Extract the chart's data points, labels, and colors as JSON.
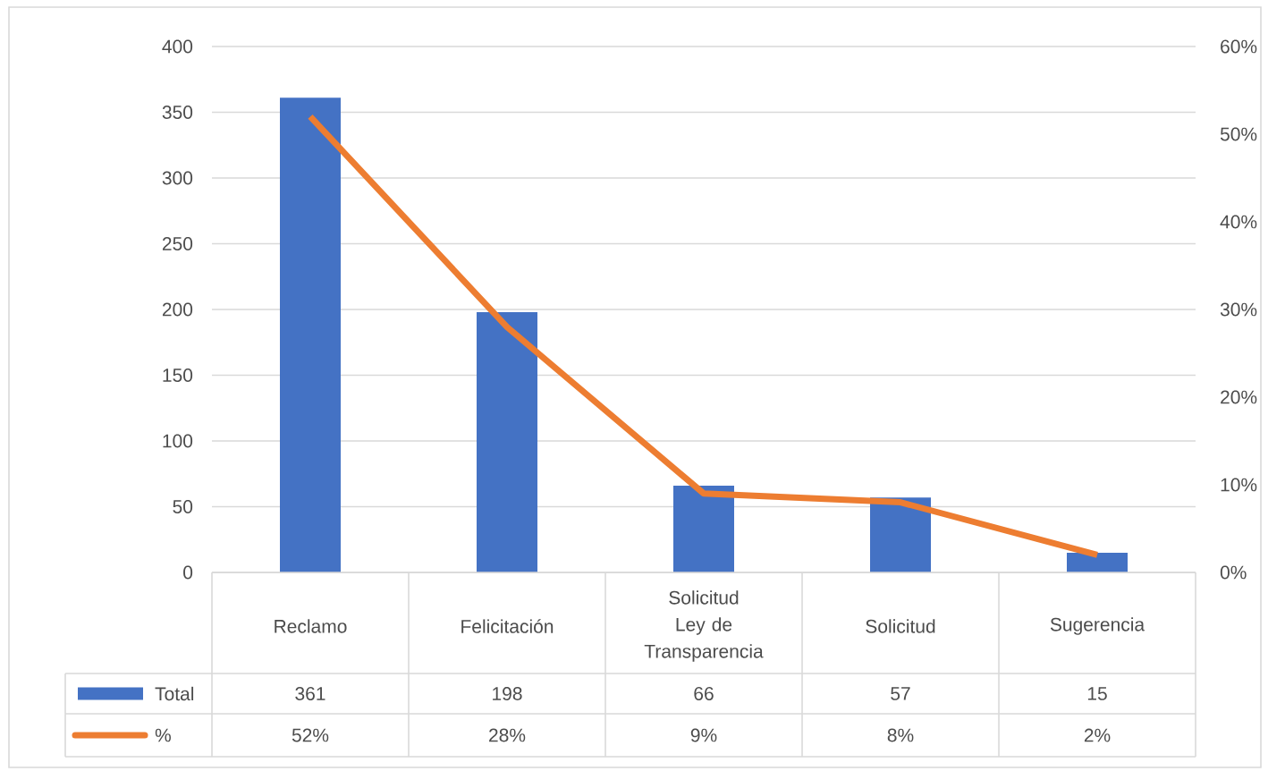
{
  "chart_data": {
    "type": "bar",
    "categories": [
      "Reclamo",
      "Felicitación",
      "Solicitud Ley de Transparencia",
      "Solicitud",
      "Sugerencia"
    ],
    "series": [
      {
        "name": "Total",
        "color": "#4472c4",
        "values": [
          361,
          198,
          66,
          57,
          15
        ],
        "value_labels": [
          "361",
          "198",
          "66",
          "57",
          "15"
        ]
      },
      {
        "name": "%",
        "type": "line",
        "axis": "y2",
        "color": "#ed7d31",
        "values": [
          52,
          28,
          9,
          8,
          2
        ],
        "value_labels": [
          "52%",
          "28%",
          "9%",
          "8%",
          "2%"
        ]
      }
    ],
    "ylim": [
      0,
      400
    ],
    "yticks": [
      0,
      50,
      100,
      150,
      200,
      250,
      300,
      350,
      400
    ],
    "y2lim": [
      0,
      60
    ],
    "y2ticks": [
      {
        "value": 0,
        "label": "0%"
      },
      {
        "value": 10,
        "label": "10%"
      },
      {
        "value": 20,
        "label": "20%"
      },
      {
        "value": 30,
        "label": "30%"
      },
      {
        "value": 40,
        "label": "40%"
      },
      {
        "value": 50,
        "label": "50%"
      },
      {
        "value": 60,
        "label": "60%"
      }
    ],
    "grid": "y",
    "legend": "bottom",
    "marker": "none"
  }
}
